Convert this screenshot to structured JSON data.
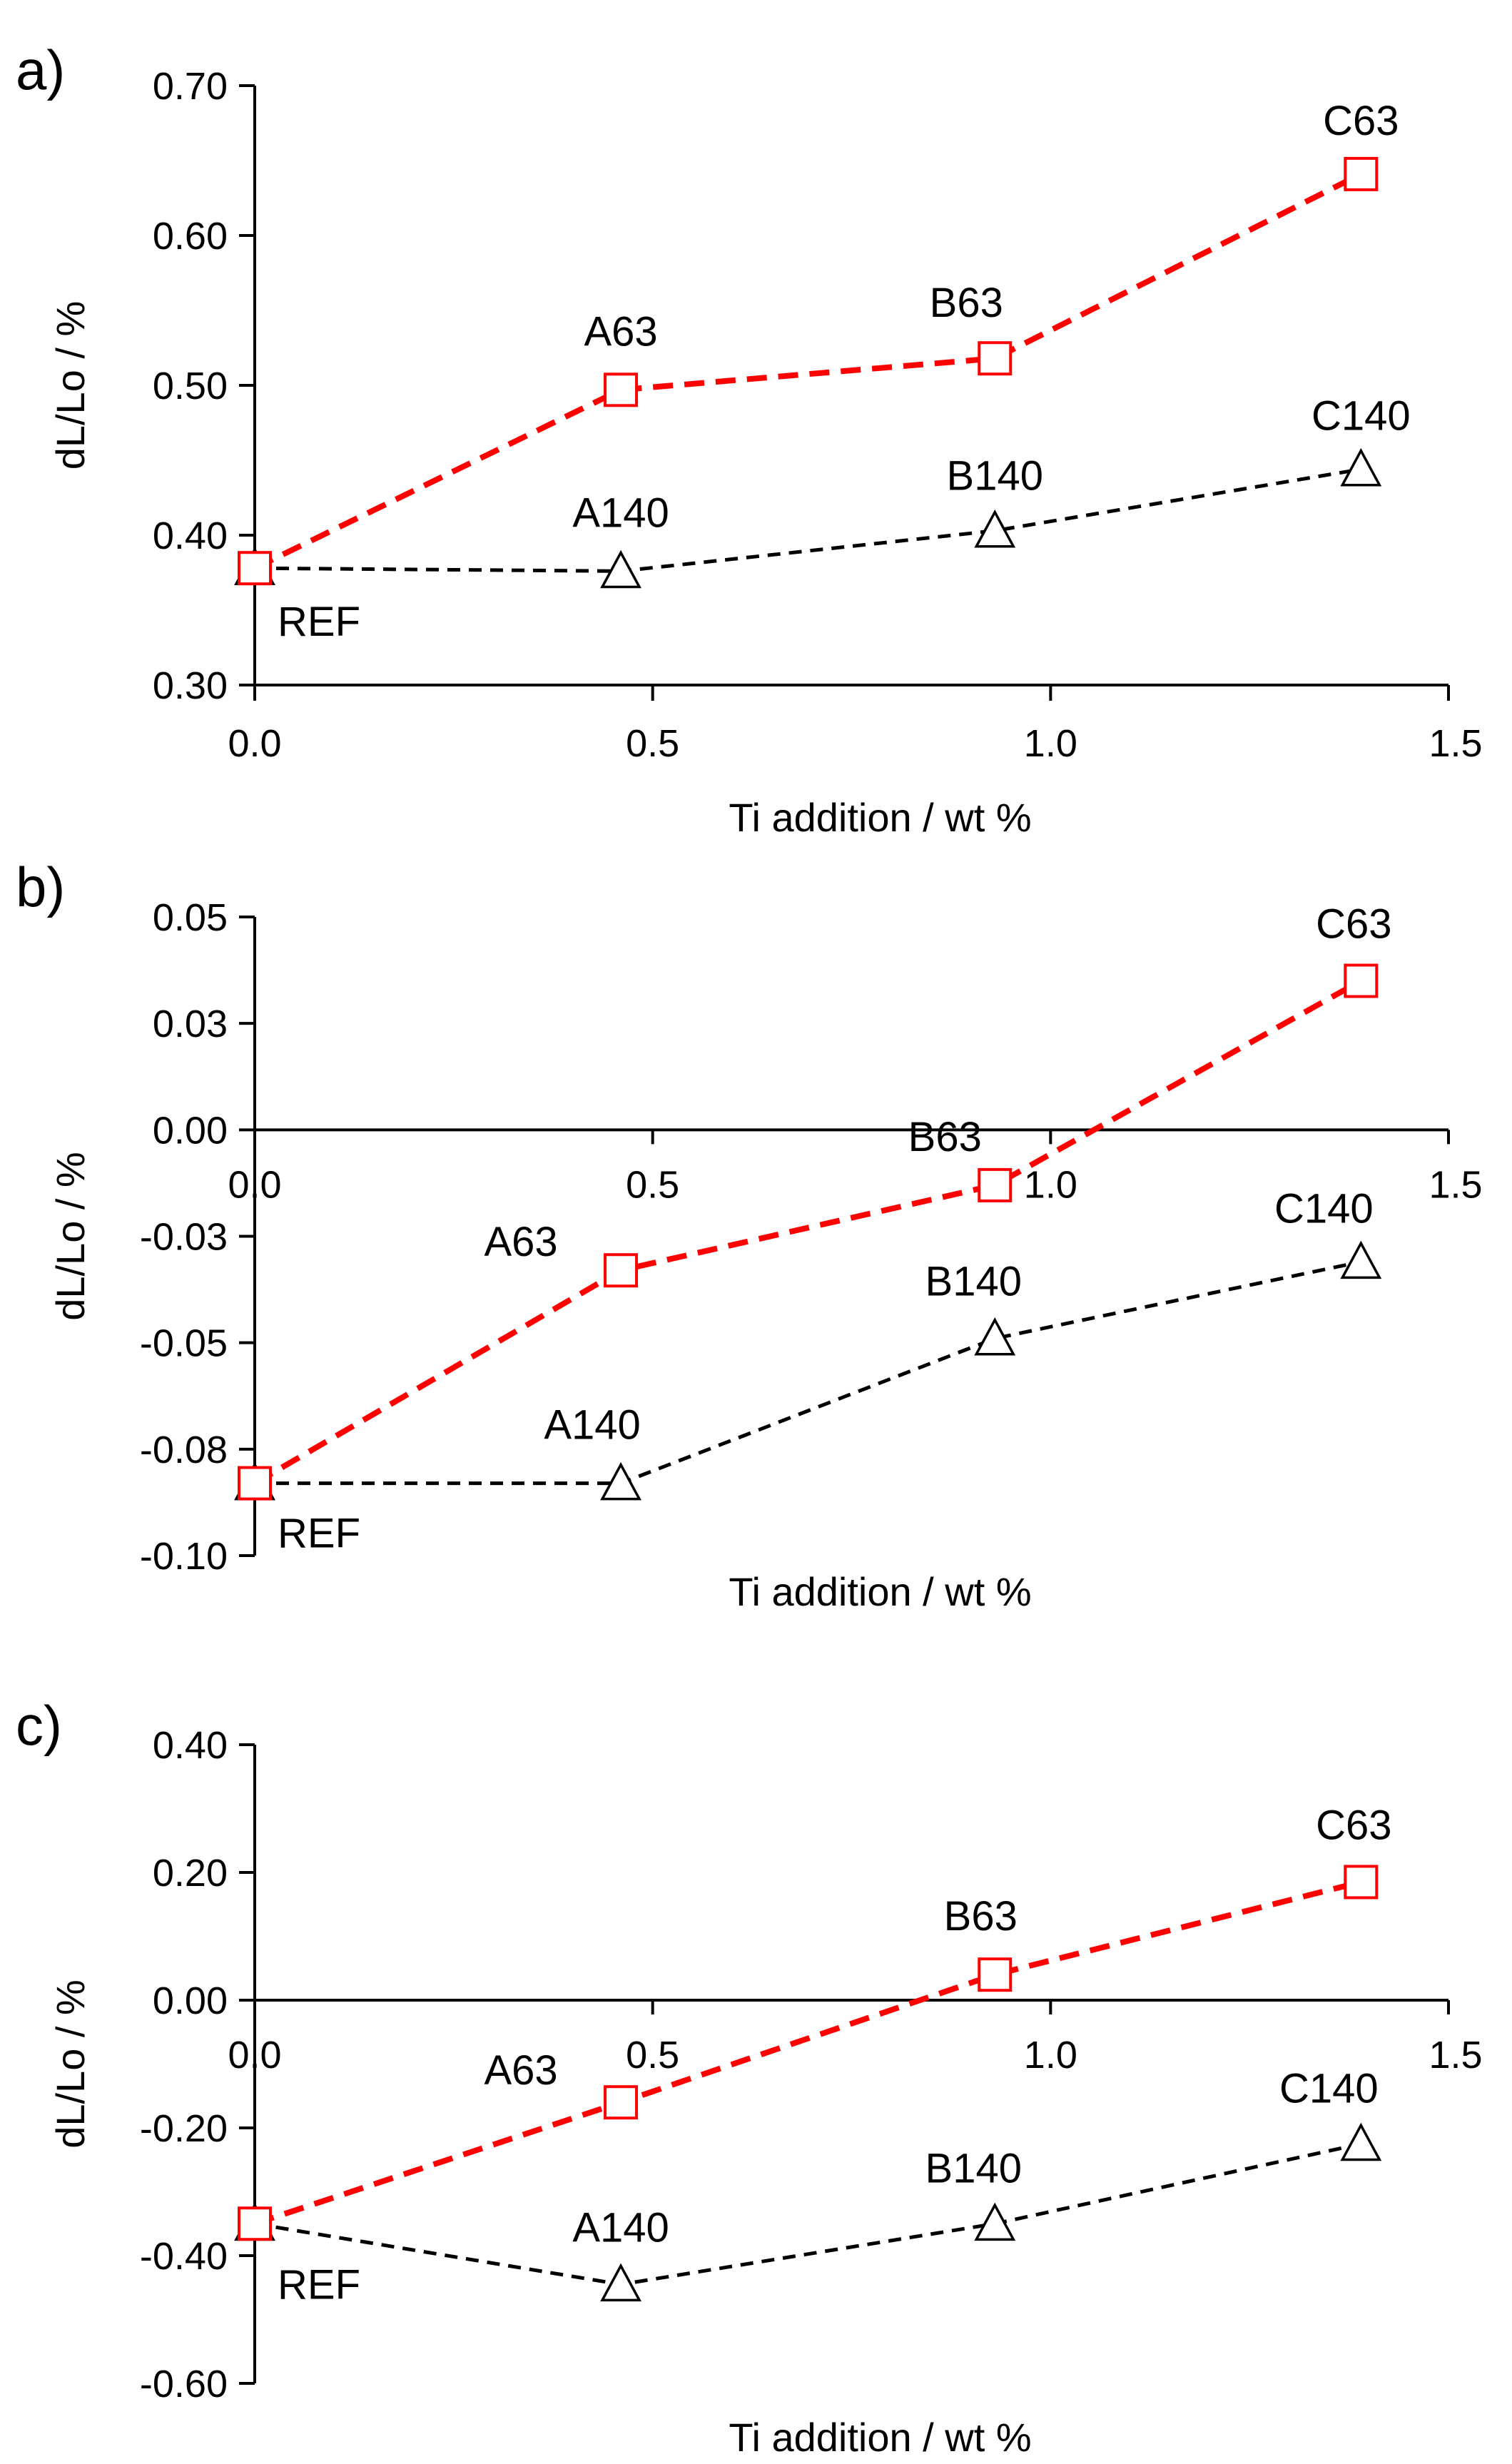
{
  "chart_data": [
    {
      "type": "line",
      "panel_label": "a)",
      "xlabel": "Ti addition / wt %",
      "ylabel": "dL/Lo / %",
      "xlim": [
        0,
        1.5
      ],
      "ylim": [
        0.3,
        0.7
      ],
      "xticks": [
        0,
        0.5,
        1.0,
        1.5
      ],
      "xtick_labels": [
        "0.0",
        "0.5",
        "1.0",
        "1.5"
      ],
      "yticks": [
        0.3,
        0.4,
        0.5,
        0.6,
        0.7
      ],
      "ytick_labels": [
        "0.30",
        "0.40",
        "0.50",
        "0.60",
        "0.70"
      ],
      "x": [
        0,
        0.46,
        0.93,
        1.39
      ],
      "series": [
        {
          "name": "63",
          "marker": "square",
          "color": "#ff0000",
          "values": [
            0.378,
            0.497,
            0.518,
            0.641
          ],
          "labels": [
            "",
            "A63",
            "B63",
            "C63"
          ]
        },
        {
          "name": "140",
          "marker": "triangle",
          "color": "#000000",
          "values": [
            0.378,
            0.376,
            0.403,
            0.444
          ],
          "labels": [
            "REF",
            "A140",
            "B140",
            "C140"
          ]
        }
      ]
    },
    {
      "type": "line",
      "panel_label": "b)",
      "xlabel": "Ti addition / wt %",
      "ylabel": "dL/Lo / %",
      "xlim": [
        0,
        1.5
      ],
      "ylim": [
        -0.1,
        0.05
      ],
      "xticks": [
        0,
        0.5,
        1.0,
        1.5
      ],
      "xtick_labels": [
        "0.0",
        "0.5",
        "1.0",
        "1.5"
      ],
      "yticks": [
        -0.1,
        -0.075,
        -0.05,
        -0.025,
        0.0,
        0.025,
        0.05
      ],
      "ytick_labels": [
        "-0.10",
        "-0.08",
        "-0.05",
        "-0.03",
        "0.00",
        "0.03",
        "0.05"
      ],
      "x": [
        0,
        0.46,
        0.93,
        1.39
      ],
      "series": [
        {
          "name": "63",
          "marker": "square",
          "color": "#ff0000",
          "values": [
            -0.083,
            -0.033,
            -0.013,
            0.035
          ],
          "labels": [
            "",
            "A63",
            "B63",
            "C63"
          ]
        },
        {
          "name": "140",
          "marker": "triangle",
          "color": "#000000",
          "values": [
            -0.083,
            -0.083,
            -0.049,
            -0.031
          ],
          "labels": [
            "REF",
            "A140",
            "B140",
            "C140"
          ]
        }
      ]
    },
    {
      "type": "line",
      "panel_label": "c)",
      "xlabel": "Ti addition / wt %",
      "ylabel": "dL/Lo / %",
      "xlim": [
        0,
        1.5
      ],
      "ylim": [
        -0.6,
        0.4
      ],
      "xticks": [
        0,
        0.5,
        1.0,
        1.5
      ],
      "xtick_labels": [
        "0.0",
        "0.5",
        "1.0",
        "1.5"
      ],
      "yticks": [
        -0.6,
        -0.4,
        -0.2,
        0.0,
        0.2,
        0.4
      ],
      "ytick_labels": [
        "-0.60",
        "-0.40",
        "-0.20",
        "0.00",
        "0.20",
        "0.40"
      ],
      "x": [
        0,
        0.46,
        0.93,
        1.39
      ],
      "series": [
        {
          "name": "63",
          "marker": "square",
          "color": "#ff0000",
          "values": [
            -0.35,
            -0.16,
            0.04,
            0.185
          ],
          "labels": [
            "",
            "A63",
            "B63",
            "C63"
          ]
        },
        {
          "name": "140",
          "marker": "triangle",
          "color": "#000000",
          "values": [
            -0.35,
            -0.445,
            -0.35,
            -0.225
          ],
          "labels": [
            "REF",
            "A140",
            "B140",
            "C140"
          ]
        }
      ]
    }
  ]
}
